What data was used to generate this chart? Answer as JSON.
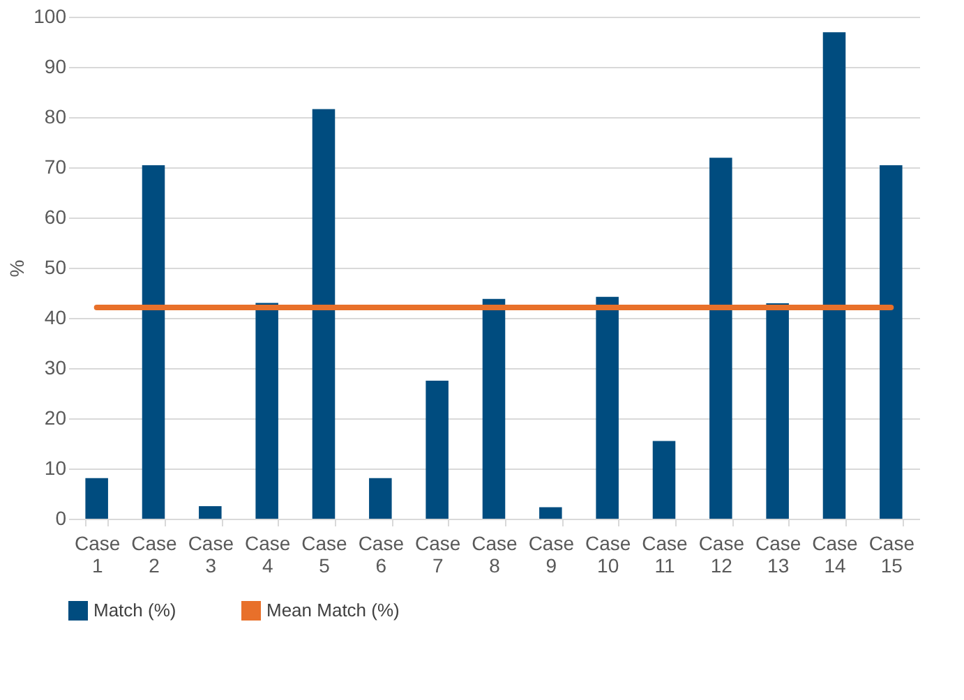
{
  "chart_data": {
    "type": "bar",
    "ylabel": "%",
    "categories": [
      "Case 1",
      "Case 2",
      "Case 3",
      "Case 4",
      "Case 5",
      "Case 6",
      "Case 7",
      "Case 8",
      "Case 9",
      "Case 10",
      "Case 11",
      "Case 12",
      "Case 13",
      "Case 14",
      "Case 15"
    ],
    "series": [
      {
        "name": "Match (%)",
        "color": "#004c7f",
        "values": [
          8.1,
          70.4,
          2.5,
          43.0,
          81.6,
          8.1,
          27.5,
          43.8,
          2.3,
          44.2,
          15.5,
          71.9,
          42.9,
          96.9,
          70.4
        ]
      },
      {
        "name": "Mean Match (%)",
        "type": "line",
        "color": "#e8702a",
        "values": [
          42.1,
          42.1,
          42.1,
          42.1,
          42.1,
          42.1,
          42.1,
          42.1,
          42.1,
          42.1,
          42.1,
          42.1,
          42.1,
          42.1,
          42.1
        ]
      }
    ],
    "ylim": [
      0,
      100
    ],
    "yticks": [
      0,
      10,
      20,
      30,
      40,
      50,
      60,
      70,
      80,
      90,
      100
    ],
    "grid": "y",
    "legend": "bottom"
  }
}
